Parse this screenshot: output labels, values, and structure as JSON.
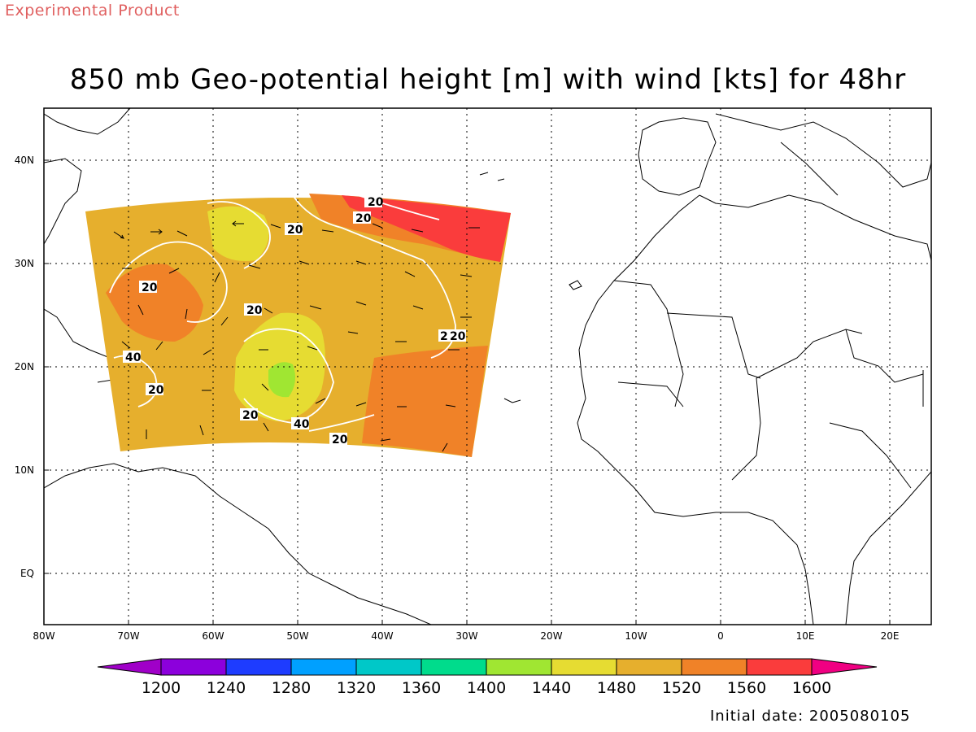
{
  "header": {
    "product_tag": "Experimental Product",
    "title": "850 mb Geo-potential height [m] with wind [kts] for 48hr"
  },
  "footer": {
    "initial_date": "Initial date: 2005080105"
  },
  "map": {
    "lat_labels": [
      "40N",
      "30N",
      "20N",
      "10N",
      "EQ"
    ],
    "lon_labels": [
      "80W",
      "70W",
      "60W",
      "50W",
      "40W",
      "30W",
      "20W",
      "10W",
      "0",
      "10E",
      "20E"
    ],
    "contour_labels": [
      "20",
      "20",
      "20",
      "20",
      "20",
      "20",
      "40",
      "20",
      "2",
      "20",
      "20",
      "40",
      "20"
    ]
  },
  "colorbar": {
    "labels": [
      "1200",
      "1240",
      "1280",
      "1320",
      "1360",
      "1400",
      "1440",
      "1480",
      "1520",
      "1560",
      "1600"
    ],
    "colors": [
      "#a000c8",
      "#8c00dc",
      "#1e3cff",
      "#00a0ff",
      "#00c8c8",
      "#00dc8c",
      "#a0e632",
      "#e6dc32",
      "#e6af2d",
      "#f08228",
      "#fa3c3c",
      "#f00082"
    ]
  }
}
